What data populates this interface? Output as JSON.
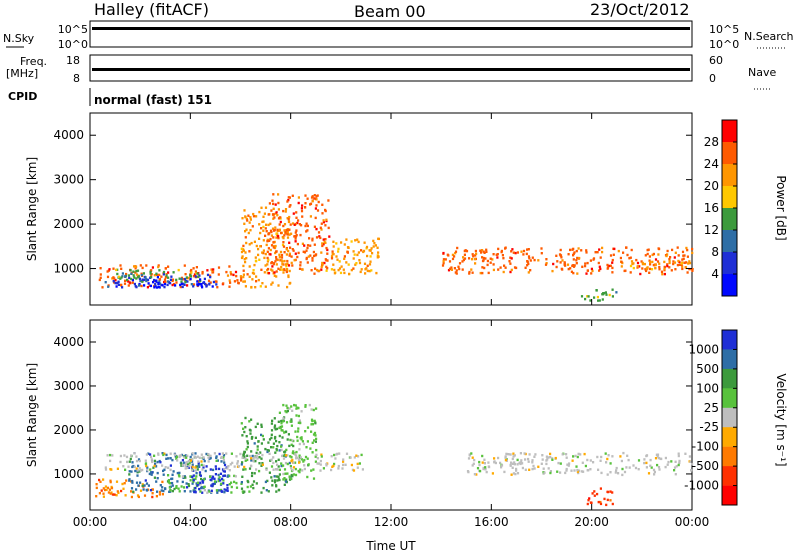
{
  "header": {
    "station": "Halley (fitACF)",
    "beam": "Beam 00",
    "date": "23/Oct/2012"
  },
  "strips": {
    "nsky_label": "N.Sky",
    "nsky_ticks": [
      "10^5",
      "10^0"
    ],
    "nsearch_label": "N.Search",
    "nsearch_ticks": [
      "10^5",
      "10^0"
    ],
    "freq_label": "Freq.",
    "freq_unit": "[MHz]",
    "freq_ticks": [
      "18",
      "8"
    ],
    "nave_label": "Nave",
    "nave_ticks": [
      "60",
      "0"
    ],
    "cpid_label": "CPID",
    "cpid_text": "normal (fast) 151"
  },
  "chart_data": [
    {
      "type": "heatmap",
      "panel": "power",
      "ylabel": "Slant Range [km]",
      "xlabel": "",
      "x_ticks": [
        "00:00",
        "04:00",
        "08:00",
        "12:00",
        "16:00",
        "20:00",
        "00:00"
      ],
      "y_ticks": [
        1000,
        2000,
        3000,
        4000
      ],
      "ylim": [
        180,
        4500
      ],
      "xlim_hours": [
        0,
        24
      ],
      "colorbar": {
        "label": "Power [dB]",
        "ticks": [
          "28",
          "24",
          "20",
          "16",
          "12",
          "8",
          "4"
        ],
        "colors": [
          "#ff0000",
          "#ff5a00",
          "#ff9600",
          "#ffc800",
          "#3c9a3c",
          "#2e6ea6",
          "#1f2fd6",
          "#0008ff"
        ]
      },
      "regions": [
        {
          "t0": 0.2,
          "t1": 6.0,
          "r0": 600,
          "r1": 1100,
          "level": 1
        },
        {
          "t0": 0.5,
          "t1": 5.0,
          "r0": 600,
          "r1": 900,
          "level": 6
        },
        {
          "t0": 1.0,
          "t1": 4.5,
          "r0": 700,
          "r1": 1000,
          "level": 4
        },
        {
          "t0": 2.0,
          "t1": 4.5,
          "r0": 600,
          "r1": 800,
          "level": 7
        },
        {
          "t0": 6.0,
          "t1": 8.0,
          "r0": 600,
          "r1": 2400,
          "level": 2
        },
        {
          "t0": 7.0,
          "t1": 9.5,
          "r0": 900,
          "r1": 2700,
          "level": 1
        },
        {
          "t0": 9.0,
          "t1": 11.5,
          "r0": 900,
          "r1": 1700,
          "level": 2
        },
        {
          "t0": 14.0,
          "t1": 24.0,
          "r0": 900,
          "r1": 1500,
          "level": 1
        },
        {
          "t0": 19.5,
          "t1": 21.0,
          "r0": 300,
          "r1": 600,
          "level": 4
        },
        {
          "t0": 21.0,
          "t1": 24.0,
          "r0": 1000,
          "r1": 1200,
          "level": 2
        }
      ]
    },
    {
      "type": "heatmap",
      "panel": "velocity",
      "ylabel": "Slant Range [km]",
      "xlabel": "Time UT",
      "x_ticks": [
        "00:00",
        "04:00",
        "08:00",
        "12:00",
        "16:00",
        "20:00",
        "00:00"
      ],
      "y_ticks": [
        1000,
        2000,
        3000,
        4000
      ],
      "ylim": [
        180,
        4500
      ],
      "xlim_hours": [
        0,
        24
      ],
      "colorbar": {
        "label": "Velocity [m s⁻¹]",
        "ticks": [
          "1000",
          "500",
          "100",
          "25",
          "-25",
          "-100",
          "-500",
          "-1000"
        ],
        "colors": [
          "#1f2fd6",
          "#2e6ea6",
          "#3c9a3c",
          "#58c23c",
          "#bebebe",
          "#ffaa00",
          "#ff7a00",
          "#ff3000",
          "#ff0000"
        ]
      },
      "regions": [
        {
          "t0": 0.2,
          "t1": 3.0,
          "r0": 500,
          "r1": 900,
          "level": 6
        },
        {
          "t0": 1.5,
          "t1": 5.5,
          "r0": 600,
          "r1": 1500,
          "level": 1
        },
        {
          "t0": 3.0,
          "t1": 6.0,
          "r0": 600,
          "r1": 1000,
          "level": 3
        },
        {
          "t0": 4.0,
          "t1": 5.5,
          "r0": 600,
          "r1": 1200,
          "level": 0
        },
        {
          "t0": 6.0,
          "t1": 8.0,
          "r0": 600,
          "r1": 2300,
          "level": 2
        },
        {
          "t0": 7.5,
          "t1": 9.0,
          "r0": 900,
          "r1": 2600,
          "level": 3
        },
        {
          "t0": 0.5,
          "t1": 11.0,
          "r0": 1100,
          "r1": 1500,
          "level": 4
        },
        {
          "t0": 15.0,
          "t1": 24.0,
          "r0": 1000,
          "r1": 1500,
          "level": 4
        },
        {
          "t0": 19.7,
          "t1": 20.8,
          "r0": 300,
          "r1": 700,
          "level": 7
        }
      ]
    }
  ]
}
